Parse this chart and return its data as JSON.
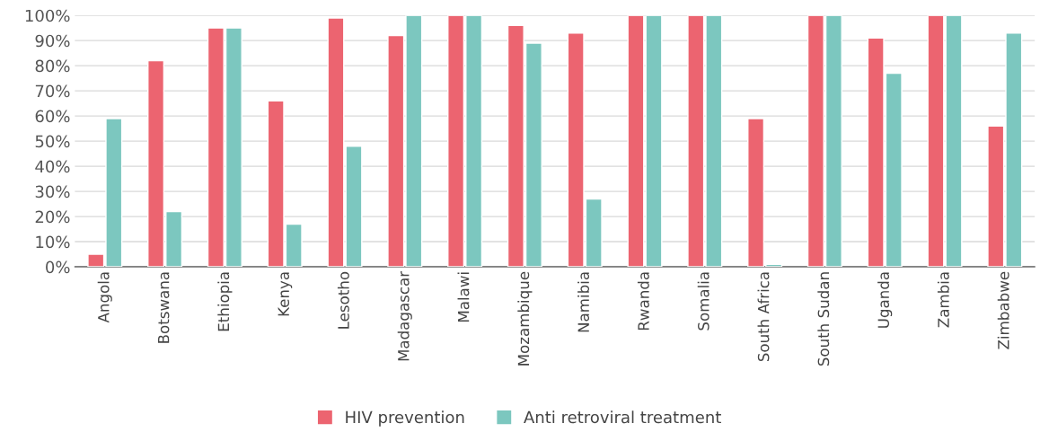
{
  "chart_data": {
    "type": "bar",
    "categories": [
      "Angola",
      "Botswana",
      "Ethiopia",
      "Kenya",
      "Lesotho",
      "Madagascar",
      "Malawi",
      "Mozambique",
      "Namibia",
      "Rwanda",
      "Somalia",
      "South Africa",
      "South Sudan",
      "Uganda",
      "Zambia",
      "Zimbabwe"
    ],
    "series": [
      {
        "name": "HIV prevention",
        "color": "#ec6470",
        "values": [
          5,
          82,
          95,
          66,
          99,
          92,
          100,
          96,
          93,
          100,
          100,
          59,
          100,
          91,
          100,
          56
        ]
      },
      {
        "name": "Anti retroviral treatment",
        "color": "#7cc7bf",
        "values": [
          59,
          22,
          95,
          17,
          48,
          100,
          100,
          89,
          27,
          100,
          100,
          1,
          100,
          77,
          100,
          93
        ]
      }
    ],
    "ylim": [
      0,
      100
    ],
    "yticks": [
      {
        "value": 0,
        "label": "0%"
      },
      {
        "value": 10,
        "label": "10%"
      },
      {
        "value": 20,
        "label": "20%"
      },
      {
        "value": 30,
        "label": "30%"
      },
      {
        "value": 40,
        "label": "40%"
      },
      {
        "value": 50,
        "label": "50%"
      },
      {
        "value": 60,
        "label": "60%"
      },
      {
        "value": 70,
        "label": "70%"
      },
      {
        "value": 80,
        "label": "80%"
      },
      {
        "value": 90,
        "label": "90%"
      },
      {
        "value": 100,
        "label": "100%"
      }
    ],
    "grid": "y",
    "legend": "bottom"
  }
}
